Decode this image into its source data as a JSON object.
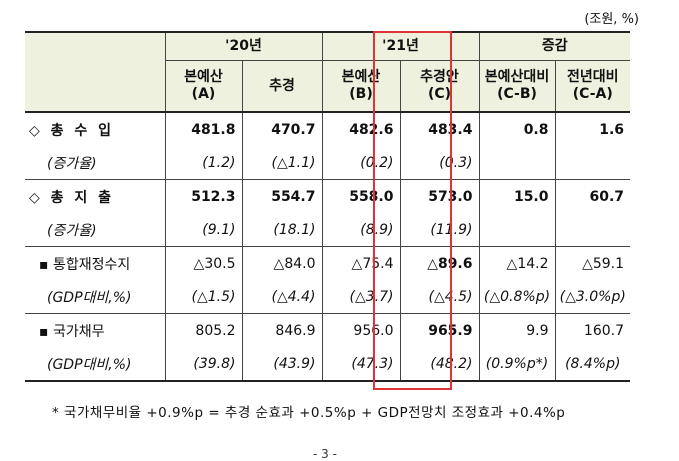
{
  "unit": "(조원, %)",
  "header": {
    "group_2020": "'20년",
    "group_2021": "'21년",
    "group_change": "증감",
    "cols": [
      {
        "line1": "본예산",
        "line2": "(A)"
      },
      {
        "line1": "추경",
        "line2": ""
      },
      {
        "line1": "본예산",
        "line2": "(B)"
      },
      {
        "line1": "추경안",
        "line2": "(C)"
      },
      {
        "line1": "본예산대비",
        "line2": "(C-B)"
      },
      {
        "line1": "전년대비",
        "line2": "(C-A)"
      }
    ]
  },
  "rows": {
    "revenue": {
      "label": "◇ 총 수 입",
      "values": [
        "481.8",
        "470.7",
        "482.6",
        "483.4",
        "0.8",
        "1.6"
      ]
    },
    "revenue_pct": {
      "label": "(증가율)",
      "values": [
        "(1.2)",
        "(△1.1)",
        "(0.2)",
        "(0.3)",
        "",
        ""
      ]
    },
    "expenditure": {
      "label": "◇ 총 지 출",
      "values": [
        "512.3",
        "554.7",
        "558.0",
        "573.0",
        "15.0",
        "60.7"
      ]
    },
    "expenditure_pct": {
      "label": "(증가율)",
      "values": [
        "(9.1)",
        "(18.1)",
        "(8.9)",
        "(11.9)",
        "",
        ""
      ]
    },
    "fiscal_balance": {
      "label": "▪ 통합재정수지",
      "values": [
        "△30.5",
        "△84.0",
        "△75.4",
        "△89.6",
        "△14.2",
        "△59.1"
      ]
    },
    "fiscal_balance_pct": {
      "label": "(GDP대비,%)",
      "values": [
        "(△1.5)",
        "(△4.4)",
        "(△3.7)",
        "(△4.5)",
        "(△0.8%p)",
        "(△3.0%p)"
      ]
    },
    "national_debt": {
      "label": "▪ 국가채무",
      "values": [
        "805.2",
        "846.9",
        "956.0",
        "965.9",
        "9.9",
        "160.7"
      ]
    },
    "national_debt_pct": {
      "label": "(GDP대비,%)",
      "values": [
        "(39.8)",
        "(43.9)",
        "(47.3)",
        "(48.2)",
        "(0.9%p*)",
        "(8.4%p)"
      ]
    }
  },
  "footnote": "* 국가채무비율 +0.9%p = 추경 순효과 +0.5%p + GDP전망치 조정효과 +0.4%p",
  "page_number": "- 3 -",
  "colors": {
    "header_bg": "#eef1de",
    "highlight_border": "#e03434"
  }
}
